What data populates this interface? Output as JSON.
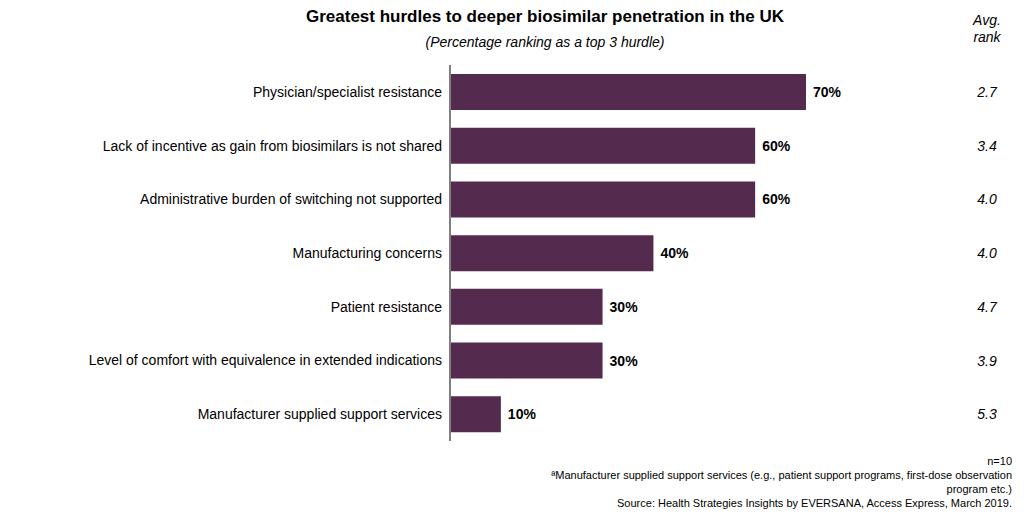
{
  "chart_data": {
    "type": "bar",
    "title": "Greatest hurdles to deeper biosimilar penetration in the UK",
    "subtitle": "(Percentage ranking as a top 3 hurdle)",
    "categories": [
      "Physician/specialist resistance",
      "Lack of incentive as gain from biosimilars is not shared",
      "Administrative burden of switching not supported",
      "Manufacturing concerns",
      "Patient resistance",
      "Level of comfort with equivalence in extended indications",
      "Manufacturer supplied support services"
    ],
    "values": [
      70,
      60,
      60,
      40,
      30,
      30,
      10
    ],
    "value_labels": [
      "70%",
      "60%",
      "60%",
      "40%",
      "30%",
      "30%",
      "10%"
    ],
    "color": "#542a4e",
    "orientation": "horizontal",
    "data_labels": true,
    "tick_labels": "y",
    "avg_rank_label": "Avg. rank",
    "avg_rank": [
      2.7,
      3.4,
      4.0,
      4.0,
      4.7,
      3.9,
      5.3
    ],
    "annotations": [
      "n=10",
      "ªManufacturer supplied support services (e.g., patient support programs, first-dose observation program etc.)",
      "Source: Health Strategies Insights by EVERSANA, Access Express, March 2019."
    ]
  }
}
